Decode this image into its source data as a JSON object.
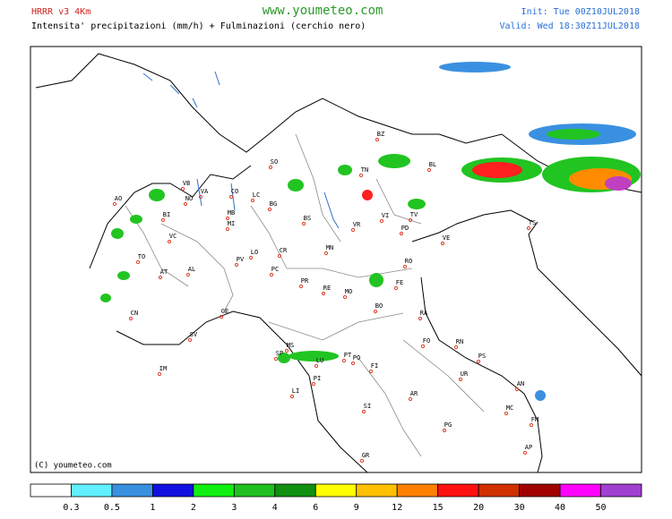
{
  "header": {
    "model": "HRRR v3 4Km",
    "subtitle": "Intensita' precipitazioni (mm/h) + Fulminazioni (cerchio nero)",
    "site": "www.youmeteo.com",
    "init": "Init: Tue 00Z10JUL2018",
    "valid": "Valid: Wed 18:30Z11JUL2018"
  },
  "footer": {
    "copyright": "(C) youmeteo.com"
  },
  "cities": [
    "AO",
    "BI",
    "VB",
    "VA",
    "CO",
    "SO",
    "BZ",
    "TN",
    "BL",
    "LC",
    "BG",
    "NO",
    "MB",
    "MI",
    "VC",
    "TO",
    "BS",
    "VR",
    "VI",
    "TV",
    "PD",
    "VE",
    "TS",
    "LO",
    "CR",
    "PV",
    "PC",
    "AT",
    "AL",
    "MN",
    "RO",
    "PR",
    "RE",
    "MO",
    "FE",
    "BO",
    "RA",
    "CN",
    "GE",
    "SV",
    "IM",
    "FO",
    "RN",
    "PS",
    "SP",
    "MS",
    "LU",
    "PT",
    "PO",
    "PI",
    "FI",
    "LI",
    "AR",
    "UR",
    "AN",
    "SI",
    "PG",
    "MC",
    "FM",
    "AP",
    "GR"
  ],
  "legend": {
    "colors": [
      "#ffffff",
      "#60f0ff",
      "#3a90e0",
      "#1010e0",
      "#10f010",
      "#20c020",
      "#109010",
      "#ffff00",
      "#ffc000",
      "#ff8000",
      "#ff1010",
      "#d03000",
      "#a00000",
      "#ff00ff",
      "#a040d0"
    ],
    "values": [
      0.3,
      0.5,
      1,
      2,
      3,
      4,
      6,
      9,
      12,
      15,
      20,
      30,
      40,
      50
    ]
  }
}
